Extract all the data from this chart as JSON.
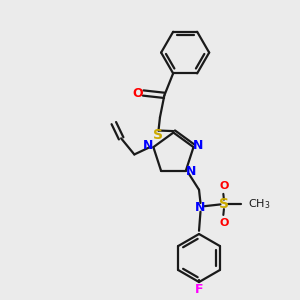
{
  "background_color": "#ebebeb",
  "bond_color": "#1a1a1a",
  "n_color": "#0000ff",
  "o_color": "#ff0000",
  "s_color": "#ccaa00",
  "f_color": "#ff00ff",
  "line_width": 1.6,
  "figsize": [
    3.0,
    3.0
  ],
  "dpi": 100,
  "xlim": [
    0,
    10
  ],
  "ylim": [
    0,
    10
  ]
}
